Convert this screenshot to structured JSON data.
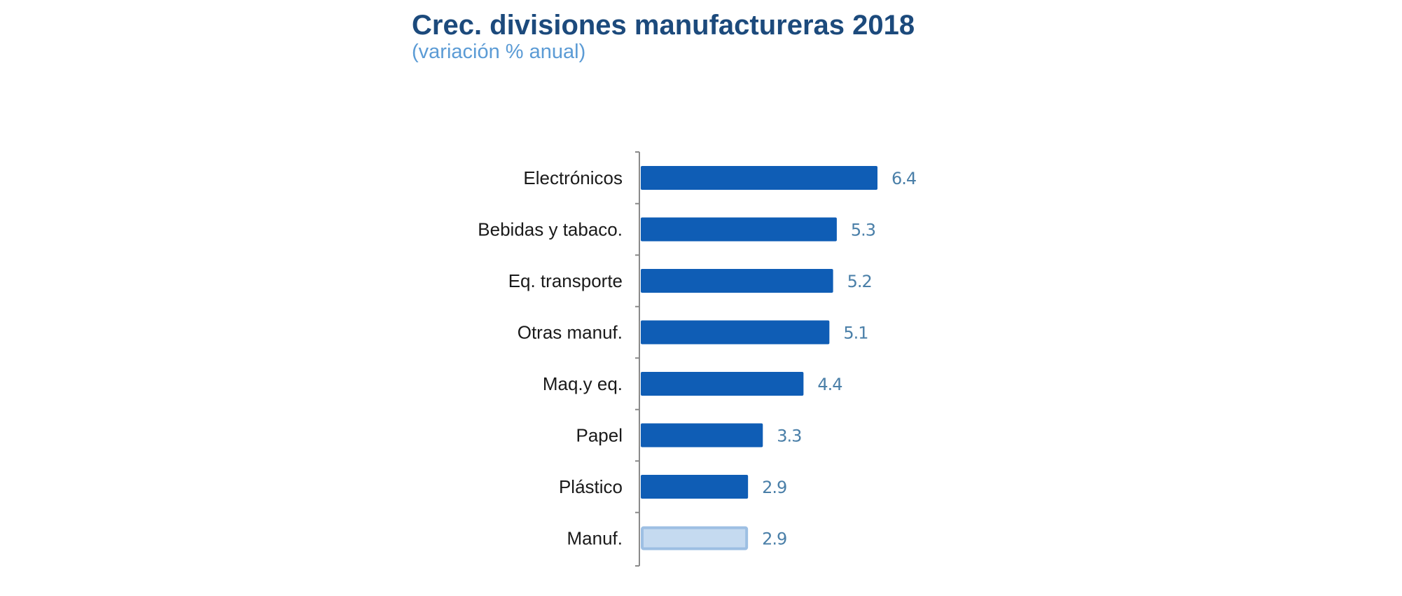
{
  "colors": {
    "title": "#1c4a7c",
    "subtitle": "#5b9bd5",
    "bar": "#0f5db5",
    "bar_highlight_fill": "#c5daf0",
    "bar_highlight_stroke": "#9dbfe3",
    "value_label": "#4a7fa8",
    "axis": "#8a8a8a"
  },
  "chart_data": {
    "type": "bar",
    "orientation": "horizontal",
    "title": "Crec. divisiones manufactureras 2018",
    "subtitle": "(variación % anual)",
    "categories": [
      "Electrónicos",
      "Bebidas y tabaco.",
      "Eq. transporte",
      "Otras manuf.",
      "Maq.y eq.",
      "Papel",
      "Plástico",
      "Manuf."
    ],
    "values": [
      6.4,
      5.3,
      5.2,
      5.1,
      4.4,
      3.3,
      2.9,
      2.9
    ],
    "value_labels": [
      "6.4",
      "5.3",
      "5.2",
      "5.1",
      "4.4",
      "3.3",
      "2.9",
      "2.9"
    ],
    "highlight": [
      false,
      false,
      false,
      false,
      false,
      false,
      false,
      true
    ],
    "xlim": [
      0,
      7
    ],
    "xlabel": "",
    "ylabel": "",
    "grid": false,
    "legend": "none"
  }
}
